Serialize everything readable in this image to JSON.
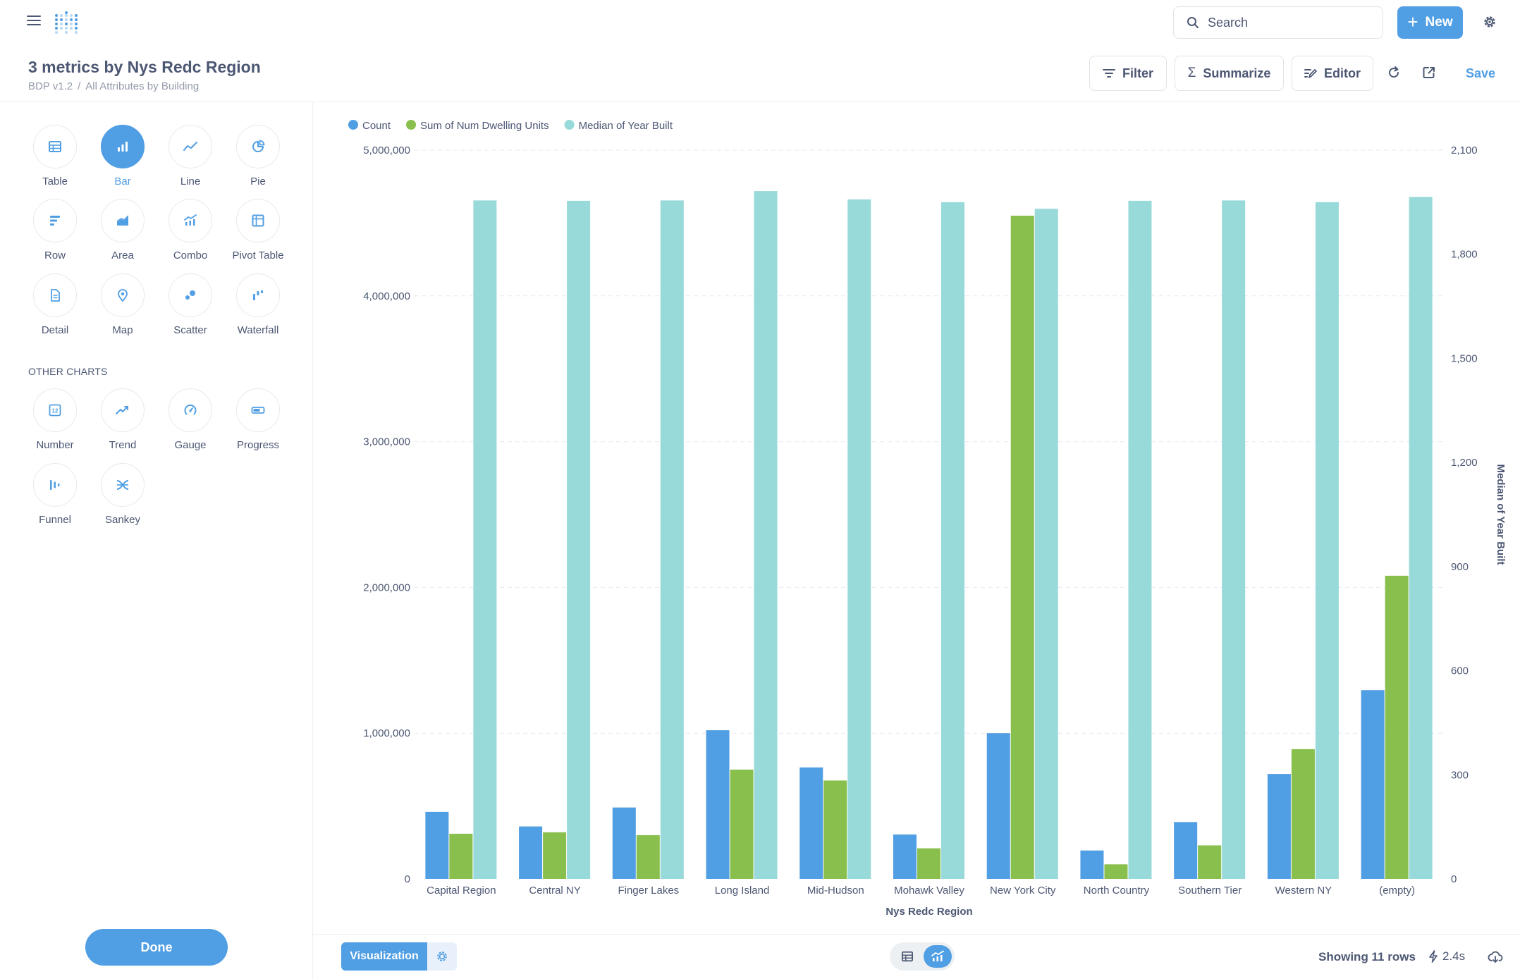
{
  "header": {
    "title": "3 metrics by Nys Redc Region",
    "breadcrumb": [
      "BDP v1.2",
      "All Attributes by Building"
    ],
    "separator": "/",
    "search_label": "Search",
    "new_label": "New",
    "filter_label": "Filter",
    "summarize_label": "Summarize",
    "editor_label": "Editor",
    "save_label": "Save"
  },
  "sidebar": {
    "types": [
      {
        "label": "Table",
        "icon": "table-icon"
      },
      {
        "label": "Bar",
        "icon": "bar-chart-icon",
        "active": true
      },
      {
        "label": "Line",
        "icon": "line-chart-icon"
      },
      {
        "label": "Pie",
        "icon": "pie-chart-icon"
      },
      {
        "label": "Row",
        "icon": "row-chart-icon"
      },
      {
        "label": "Area",
        "icon": "area-chart-icon"
      },
      {
        "label": "Combo",
        "icon": "combo-chart-icon"
      },
      {
        "label": "Pivot Table",
        "icon": "pivot-table-icon"
      },
      {
        "label": "Detail",
        "icon": "detail-icon"
      },
      {
        "label": "Map",
        "icon": "map-pin-icon"
      },
      {
        "label": "Scatter",
        "icon": "scatter-icon"
      },
      {
        "label": "Waterfall",
        "icon": "waterfall-icon"
      }
    ],
    "other_heading": "OTHER CHARTS",
    "other_types": [
      {
        "label": "Number",
        "icon": "number-icon"
      },
      {
        "label": "Trend",
        "icon": "trend-icon"
      },
      {
        "label": "Gauge",
        "icon": "gauge-icon"
      },
      {
        "label": "Progress",
        "icon": "progress-icon"
      },
      {
        "label": "Funnel",
        "icon": "funnel-icon"
      },
      {
        "label": "Sankey",
        "icon": "sankey-icon"
      }
    ],
    "done_label": "Done"
  },
  "chart_data": {
    "type": "bar",
    "xlabel": "Nys Redc Region",
    "ylabel_right": "Median of Year Built",
    "legend_position": "top-left",
    "grid": true,
    "categories": [
      "Capital Region",
      "Central NY",
      "Finger Lakes",
      "Long Island",
      "Mid-Hudson",
      "Mohawk Valley",
      "New York City",
      "North Country",
      "Southern Tier",
      "Western NY",
      "(empty)"
    ],
    "series": [
      {
        "name": "Count",
        "axis": "left",
        "color": "#509ee3",
        "values": [
          460000,
          360000,
          490000,
          1020000,
          765000,
          305000,
          1000000,
          195000,
          390000,
          720000,
          1295000
        ]
      },
      {
        "name": "Sum of Num Dwelling Units",
        "axis": "left",
        "color": "#88bf4d",
        "values": [
          310000,
          320000,
          300000,
          750000,
          675000,
          210000,
          4550000,
          100000,
          230000,
          890000,
          2080000
        ]
      },
      {
        "name": "Median of Year Built",
        "axis": "right",
        "color": "#98d9d9",
        "values": [
          1955,
          1954,
          1955,
          1982,
          1958,
          1950,
          1931,
          1954,
          1955,
          1950,
          1965
        ]
      }
    ],
    "y_left": {
      "min": 0,
      "max": 5000000,
      "ticks": [
        0,
        1000000,
        2000000,
        3000000,
        4000000,
        5000000
      ],
      "tick_labels": [
        "0",
        "1,000,000",
        "2,000,000",
        "3,000,000",
        "4,000,000",
        "5,000,000"
      ]
    },
    "y_right": {
      "min": 0,
      "max": 2100,
      "ticks": [
        0,
        300,
        600,
        900,
        1200,
        1500,
        1800,
        2100
      ],
      "tick_labels": [
        "0",
        "300",
        "600",
        "900",
        "1,200",
        "1,500",
        "1,800",
        "2,100"
      ]
    }
  },
  "footer": {
    "visualization_label": "Visualization",
    "rows_label": "Showing 11 rows",
    "time_label": "2.4s"
  }
}
